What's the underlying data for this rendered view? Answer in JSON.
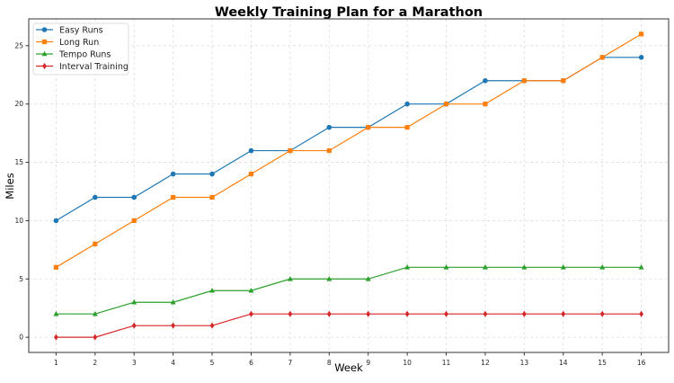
{
  "chart_data": {
    "type": "line",
    "title": "Weekly Training Plan for a Marathon",
    "xlabel": "Week",
    "ylabel": "Miles",
    "x": [
      1,
      2,
      3,
      4,
      5,
      6,
      7,
      8,
      9,
      10,
      11,
      12,
      13,
      14,
      15,
      16
    ],
    "xticks": [
      "1",
      "2",
      "3",
      "4",
      "5",
      "6",
      "7",
      "8",
      "9",
      "10",
      "11",
      "12",
      "13",
      "14",
      "15",
      "16"
    ],
    "yticks": [
      0,
      5,
      10,
      15,
      20,
      25
    ],
    "xlim": [
      0.3,
      16.7
    ],
    "ylim": [
      -1.3,
      27.3
    ],
    "grid": true,
    "legend_position": "top-left",
    "series": [
      {
        "name": "Easy Runs",
        "color": "#1f77b4",
        "marker": "circle",
        "values": [
          10,
          12,
          12,
          14,
          14,
          16,
          16,
          18,
          18,
          20,
          20,
          22,
          22,
          22,
          24,
          24
        ]
      },
      {
        "name": "Long Run",
        "color": "#ff7f0e",
        "marker": "square",
        "values": [
          6,
          8,
          10,
          12,
          12,
          14,
          16,
          16,
          18,
          18,
          20,
          20,
          22,
          22,
          24,
          26
        ]
      },
      {
        "name": "Tempo Runs",
        "color": "#2ca02c",
        "marker": "triangle",
        "values": [
          2,
          2,
          3,
          3,
          4,
          4,
          5,
          5,
          5,
          6,
          6,
          6,
          6,
          6,
          6,
          6
        ]
      },
      {
        "name": "Interval Training",
        "color": "#d62728",
        "marker": "diamond",
        "values": [
          0,
          0,
          1,
          1,
          1,
          2,
          2,
          2,
          2,
          2,
          2,
          2,
          2,
          2,
          2,
          2
        ]
      }
    ]
  }
}
